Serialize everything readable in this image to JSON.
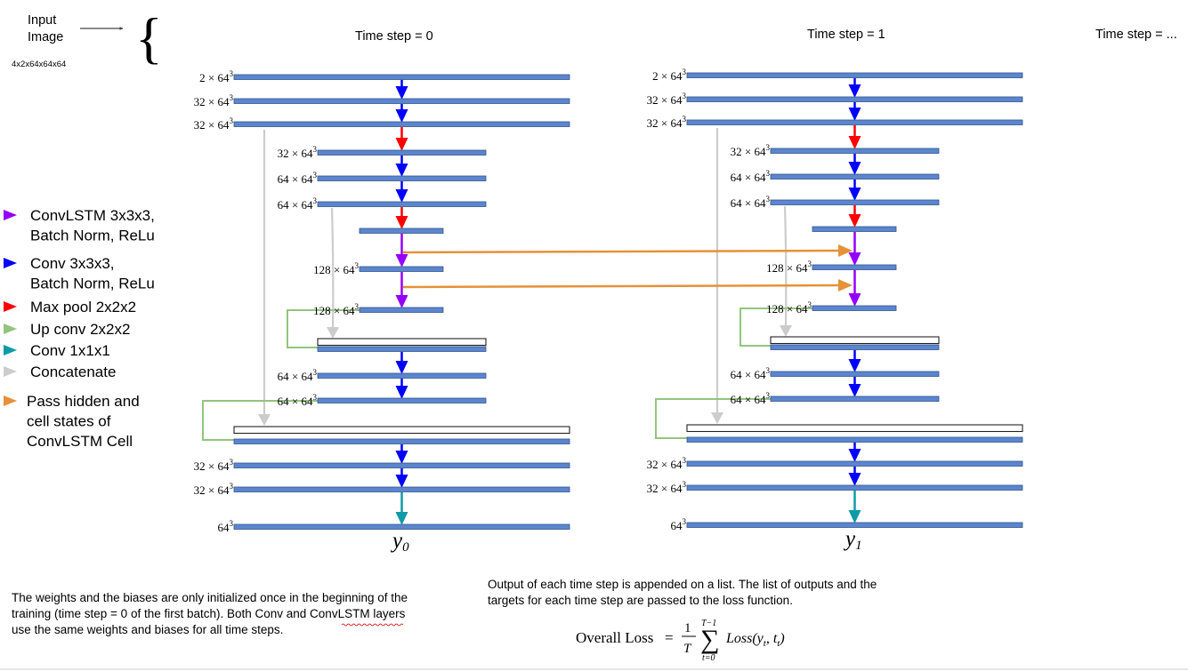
{
  "input": {
    "label_line1": "Input",
    "label_line2": "Image",
    "shape": "4x2x64x64x64",
    "brace": "{"
  },
  "timesteps": [
    {
      "title": "Time step = 0",
      "output_symbol": "y",
      "output_subscript": "0"
    },
    {
      "title": "Time step = 1",
      "output_symbol": "y",
      "output_subscript": "1"
    }
  ],
  "timestep_more": "Time step = ...",
  "layer_dims": {
    "enc1": {
      "base": "2 × 64",
      "exp": "3"
    },
    "enc2": {
      "base": "32 × 64",
      "exp": "3"
    },
    "enc3": {
      "base": "32 × 64",
      "exp": "3"
    },
    "enc4": {
      "base": "32 × 64",
      "exp": "3"
    },
    "enc5": {
      "base": "64 × 64",
      "exp": "3"
    },
    "enc6": {
      "base": "64 × 64",
      "exp": "3"
    },
    "bot2": {
      "base": "128 × 64",
      "exp": "3"
    },
    "bot3": {
      "base": "128 × 64",
      "exp": "3"
    },
    "dec2a": {
      "base": "64 × 64",
      "exp": "3"
    },
    "dec2b": {
      "base": "64 × 64",
      "exp": "3"
    },
    "dec1a": {
      "base": "32 × 64",
      "exp": "3"
    },
    "dec1b": {
      "base": "32 × 64",
      "exp": "3"
    },
    "out": {
      "base": "64",
      "exp": "3"
    }
  },
  "legend": [
    {
      "lines": [
        "ConvLSTM 3x3x3,",
        "Batch Norm, ReLu"
      ],
      "color": "#9400ff"
    },
    {
      "lines": [
        "Conv 3x3x3,",
        "Batch Norm, ReLu"
      ],
      "color": "#0000ff"
    },
    {
      "lines": [
        "Max pool 2x2x2"
      ],
      "color": "#ff0000"
    },
    {
      "lines": [
        "Up conv 2x2x2"
      ],
      "color": "#93c47d"
    },
    {
      "lines": [
        "Conv 1x1x1"
      ],
      "color": "#0e9aa7"
    },
    {
      "lines": [
        "Concatenate"
      ],
      "color": "#cccccc"
    },
    {
      "lines": [
        "Pass hidden and",
        "cell states of",
        "ConvLSTM Cell"
      ],
      "color": "#e69138"
    }
  ],
  "notes": {
    "weights": [
      "The weights and the biases are only initialized once in the beginning of the",
      "training (time step = 0 of the first batch). Both Conv and ConvLSTM layers",
      "use the same weights and biases for all time steps."
    ],
    "output": [
      "Output of each time step is appended on a list. The list of outputs and the",
      "targets for each time step are passed to the loss function."
    ]
  },
  "loss": {
    "label": "Overall Loss",
    "equals": "=",
    "numerator": "1",
    "denominator": "T",
    "sum_symbol": "∑",
    "sum_upper": "T−1",
    "sum_lower": "t=0",
    "term": "Loss(y",
    "term_sub1": "t",
    "term_mid": ", t",
    "term_sub2": "t",
    "term_end": ")"
  },
  "colors": {
    "layer_fill": "#5b86cf",
    "conv": "#0000ff",
    "convlstm": "#9400ff",
    "maxpool": "#ff0000",
    "upconv": "#93c47d",
    "conv1x1": "#0e9aa7",
    "concat": "#cccccc",
    "hidden": "#e69138"
  }
}
